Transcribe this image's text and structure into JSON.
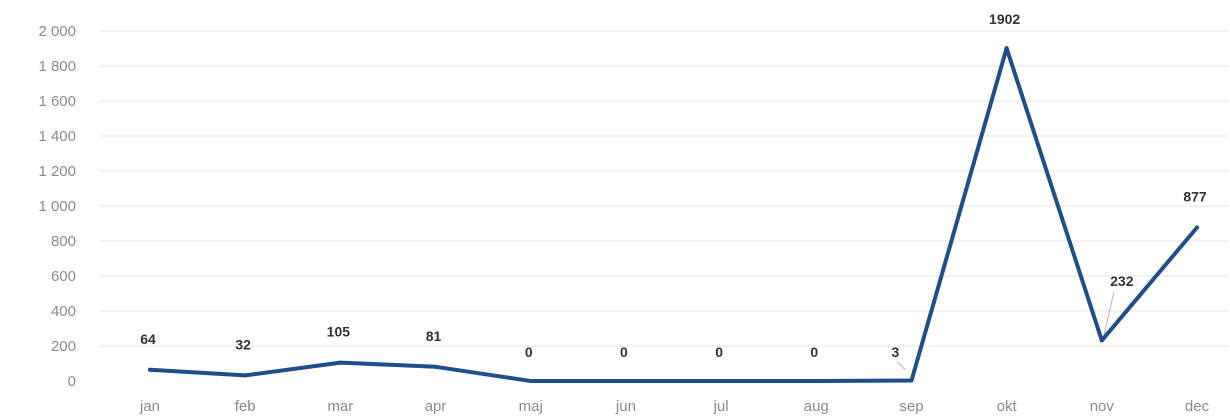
{
  "chart_data": {
    "type": "line",
    "categories": [
      "jan",
      "feb",
      "mar",
      "apr",
      "maj",
      "jun",
      "jul",
      "aug",
      "sep",
      "okt",
      "nov",
      "dec"
    ],
    "series": [
      {
        "values": [
          64,
          32,
          105,
          81,
          0,
          0,
          0,
          0,
          3,
          1902,
          232,
          877
        ]
      }
    ],
    "data_labels": [
      "64",
      "32",
      "105",
      "81",
      "0",
      "0",
      "0",
      "0",
      "3",
      "1902",
      "232",
      "877"
    ],
    "y_tick_labels": [
      "0",
      "200",
      "400",
      "600",
      "800",
      "1 000",
      "1 200",
      "1 400",
      "1 600",
      "1 800",
      "2 000"
    ],
    "y_ticks": [
      0,
      200,
      400,
      600,
      800,
      1000,
      1200,
      1400,
      1600,
      1800,
      2000
    ],
    "ylim": [
      0,
      2000
    ],
    "grid": true,
    "legend": "none",
    "line_color": "#1f4e8c",
    "title": "",
    "xlabel": "",
    "ylabel": ""
  }
}
